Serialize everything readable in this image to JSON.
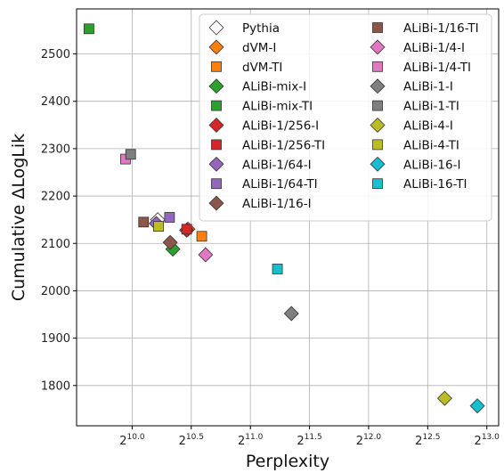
{
  "chart_data": {
    "type": "scatter",
    "title": "",
    "xlabel": "Perplexity",
    "ylabel": "Cumulative ΔLogLik",
    "x_scale": "log2",
    "x_ticks": [
      10.0,
      10.5,
      11.0,
      11.5,
      12.0,
      12.5,
      13.0
    ],
    "x_tick_labels": [
      "2^{10.0}",
      "2^{10.5}",
      "2^{11.0}",
      "2^{11.5}",
      "2^{12.0}",
      "2^{12.5}",
      "2^{13.0}"
    ],
    "xlim_log2": [
      9.53,
      13.1
    ],
    "y_ticks": [
      1800,
      1900,
      2000,
      2100,
      2200,
      2300,
      2400,
      2500
    ],
    "ylim": [
      1715,
      2595
    ],
    "grid": true,
    "legend_position": "top-right",
    "legend_columns": 2,
    "series": [
      {
        "name": "Pythia",
        "marker": "diamond",
        "color": "#ffffff",
        "x": 1190,
        "y": 2150
      },
      {
        "name": "dVM-I",
        "marker": "diamond",
        "color": "#ff7f0e",
        "x": 1420,
        "y": 2130
      },
      {
        "name": "dVM-TI",
        "marker": "square",
        "color": "#ff7f0e",
        "x": 1540,
        "y": 2115
      },
      {
        "name": "ALiBi-mix-I",
        "marker": "diamond",
        "color": "#2ca02c",
        "x": 1300,
        "y": 2088
      },
      {
        "name": "ALiBi-mix-TI",
        "marker": "square",
        "color": "#2ca02c",
        "x": 795,
        "y": 2553
      },
      {
        "name": "ALiBi-1/256-I",
        "marker": "diamond",
        "color": "#d62728",
        "x": 1410,
        "y": 2128
      },
      {
        "name": "ALiBi-1/256-TI",
        "marker": "square",
        "color": "#d62728",
        "x": 1410,
        "y": 2130
      },
      {
        "name": "ALiBi-1/64-I",
        "marker": "diamond",
        "color": "#9467bd",
        "x": 1180,
        "y": 2142
      },
      {
        "name": "ALiBi-1/64-TI",
        "marker": "square",
        "color": "#9467bd",
        "x": 1275,
        "y": 2155
      },
      {
        "name": "ALiBi-1/16-I",
        "marker": "diamond",
        "color": "#8c564b",
        "x": 1280,
        "y": 2102
      },
      {
        "name": "ALiBi-1/16-TI",
        "marker": "square",
        "color": "#8c564b",
        "x": 1095,
        "y": 2145
      },
      {
        "name": "ALiBi-1/4-I",
        "marker": "diamond",
        "color": "#e377c2",
        "x": 1575,
        "y": 2076
      },
      {
        "name": "ALiBi-1/4-TI",
        "marker": "square",
        "color": "#e377c2",
        "x": 985,
        "y": 2278
      },
      {
        "name": "ALiBi-1-I",
        "marker": "diamond",
        "color": "#7f7f7f",
        "x": 2605,
        "y": 1952
      },
      {
        "name": "ALiBi-1-TI",
        "marker": "square",
        "color": "#7f7f7f",
        "x": 1015,
        "y": 2288
      },
      {
        "name": "ALiBi-4-I",
        "marker": "diamond",
        "color": "#bcbd22",
        "x": 6400,
        "y": 1773
      },
      {
        "name": "ALiBi-4-TI",
        "marker": "square",
        "color": "#bcbd22",
        "x": 1195,
        "y": 2136
      },
      {
        "name": "ALiBi-16-I",
        "marker": "diamond",
        "color": "#17becf",
        "x": 7750,
        "y": 1757
      },
      {
        "name": "ALiBi-16-TI",
        "marker": "square",
        "color": "#17becf",
        "x": 2400,
        "y": 2046
      }
    ]
  }
}
